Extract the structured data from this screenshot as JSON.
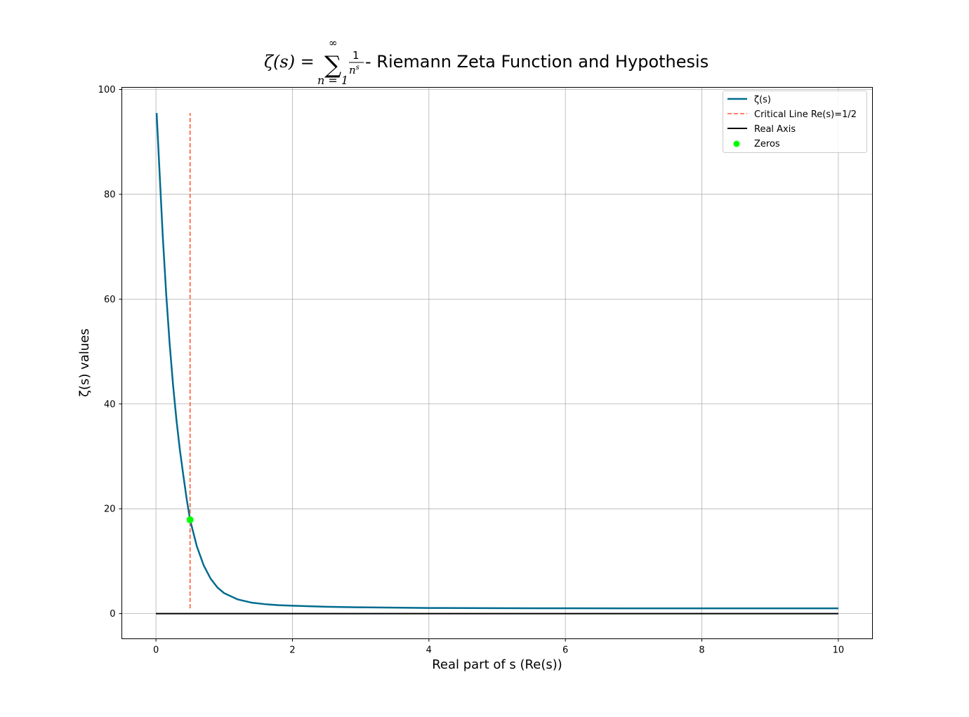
{
  "chart_data": {
    "type": "line",
    "title": {
      "formula_lhs": "ζ(s) = ",
      "formula_sum_upper": "∞",
      "formula_sum_lower": "n = 1",
      "formula_numerator": "1",
      "formula_denominator": "n",
      "formula_denominator_exp": "s",
      "text": " - Riemann Zeta Function and Hypothesis"
    },
    "xlabel": "Real part of s (Re(s))",
    "ylabel": "ζ(s) values",
    "xlim": [
      -0.5,
      10.5
    ],
    "ylim": [
      -4.8,
      100.4
    ],
    "xticks": [
      0,
      2,
      4,
      6,
      8,
      10
    ],
    "yticks": [
      0,
      20,
      40,
      60,
      80,
      100
    ],
    "xtick_labels": [
      "0",
      "2",
      "4",
      "6",
      "8",
      "10"
    ],
    "ytick_labels": [
      "0",
      "20",
      "40",
      "60",
      "80",
      "100"
    ],
    "grid": true,
    "legend_position": "top-right",
    "series": [
      {
        "name": "ζ(s)",
        "style": "solid",
        "color": "#006b8f",
        "x": [
          0.01,
          0.05,
          0.1,
          0.15,
          0.2,
          0.25,
          0.3,
          0.35,
          0.4,
          0.45,
          0.5,
          0.6,
          0.7,
          0.8,
          0.9,
          1.0,
          1.2,
          1.4,
          1.6,
          1.8,
          2.0,
          2.5,
          3.0,
          4.0,
          5.0,
          6.0,
          7.0,
          8.0,
          9.0,
          10.0
        ],
        "y": [
          95.5,
          85.0,
          72.0,
          61.0,
          51.6,
          43.7,
          37.0,
          31.3,
          26.5,
          21.9,
          17.9,
          12.8,
          9.2,
          6.7,
          5.0,
          3.9,
          2.7,
          2.1,
          1.8,
          1.6,
          1.5,
          1.3,
          1.2,
          1.08,
          1.04,
          1.02,
          1.01,
          1.0,
          1.0,
          1.0
        ]
      },
      {
        "name": "Critical Line Re(s)=1/2",
        "style": "dashed",
        "color": "#ff5733",
        "x": [
          0.5,
          0.5
        ],
        "y": [
          1.0,
          95.5
        ]
      },
      {
        "name": "Real Axis",
        "style": "solid",
        "color": "#000000",
        "x": [
          0.0,
          10.0
        ],
        "y": [
          0.0,
          0.0
        ]
      },
      {
        "name": "Zeros",
        "style": "marker",
        "color": "#00ff00",
        "x": [
          0.5
        ],
        "y": [
          17.9
        ]
      }
    ]
  }
}
